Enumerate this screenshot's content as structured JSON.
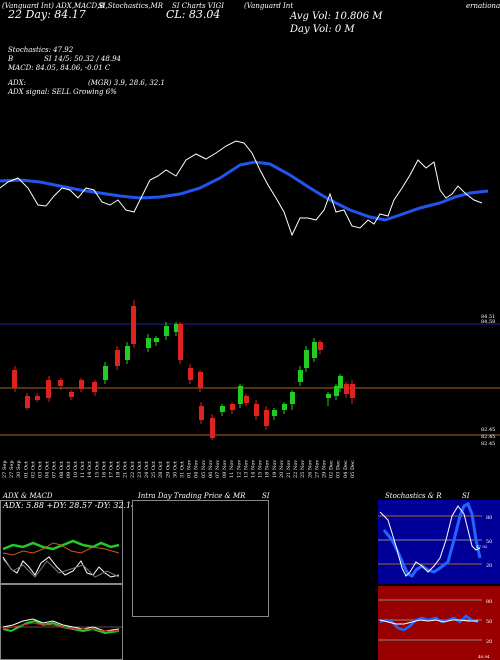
{
  "header": {
    "top_left": "(Vanguard Int) ADX,MACD,B",
    "top_mid": "SI,Stochastics,MR",
    "top_right_a": "SI Charts VIGI",
    "top_right_b": "(Vanguard Int",
    "top_right_c": "ernational",
    "day_line": "22 Day: 84.17",
    "cl_line": "CL: 83.04",
    "avg_vol": "Avg Vol: 10.806  M",
    "day_vol": "Day Vol: 0  M"
  },
  "indicators": {
    "stoch": "Stochastics: 47.92",
    "si": "SI 14/5: 50.32 / 48.94",
    "b": "B",
    "macd": "MACD: 84.05, 84.06, -0.01 C",
    "adx": "ADX:",
    "mgr": "(MGR) 3.9, 28.6, 32.1",
    "signal": "ADX signal: SELL Growing 6%"
  },
  "price_axis": {
    "top_a": "84.51",
    "top_b": "84.58",
    "low_a": "82.45",
    "low_b": "82.45",
    "low_c": "82.45"
  },
  "dates": [
    "27 Sep",
    "27 Sep",
    "30 Sep",
    "01 Oct",
    "02 Oct",
    "03 Oct",
    "04 Oct",
    "07 Oct",
    "08 Oct",
    "09 Oct",
    "10 Oct",
    "11 Oct",
    "14 Oct",
    "15 Oct",
    "16 Oct",
    "17 Oct",
    "18 Oct",
    "21 Oct",
    "22 Oct",
    "23 Oct",
    "24 Oct",
    "25 Oct",
    "28 Oct",
    "29 Oct",
    "30 Oct",
    "31 Oct",
    "01 Nov",
    "04 Nov",
    "05 Nov",
    "06 Nov",
    "07 Nov",
    "08 Nov",
    "11 Nov",
    "12 Nov",
    "13 Nov",
    "14 Nov",
    "15 Nov",
    "18 Nov",
    "19 Nov",
    "20 Nov",
    "21 Nov",
    "22 Nov",
    "25 Nov",
    "26 Nov",
    "27 Nov",
    "29 Nov",
    "02 Dec",
    "03 Dec",
    "04 Dec",
    "05 Dec"
  ],
  "panels": {
    "adx_macd_title": "ADX & MACD",
    "adx_values": "ADX: 5.88  +DY: 28.57  -DY: 32.14",
    "intraday_title": "Intra Day Trading Price & MR",
    "intraday_si": "SI",
    "stoch_title": "Stochastics & R",
    "stoch_si": "SI",
    "stoch_levels": [
      "80",
      "50",
      "20"
    ],
    "rsi_levels": [
      "80",
      "50",
      "20"
    ],
    "stoch_tag": "47.92",
    "rsi_tag": "48.94"
  },
  "colors": {
    "up": "#22cc22",
    "down": "#dd2222",
    "ma": "#2255ee",
    "rsi_bg": "#990000",
    "stoch_bg": "#000099"
  }
}
